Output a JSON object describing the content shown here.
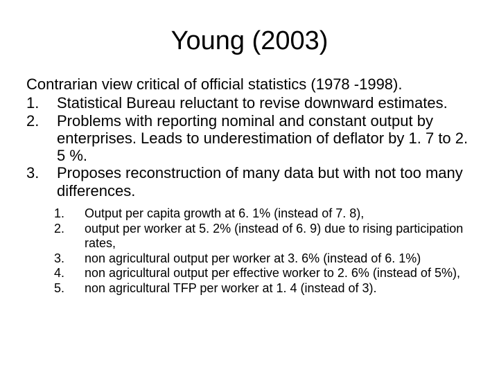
{
  "title": "Young (2003)",
  "intro": "Contrarian view critical of official statistics (1978 -1998).",
  "mainItems": [
    {
      "num": "1.",
      "text": "Statistical Bureau reluctant to revise downward estimates."
    },
    {
      "num": "2.",
      "text": "Problems with reporting nominal and constant output by enterprises. Leads to underestimation of deflator by 1. 7 to 2. 5 %."
    },
    {
      "num": "3.",
      "text": "Proposes reconstruction of many data but with not too many differences."
    }
  ],
  "subItems": [
    {
      "num": "1.",
      "text": "Output per capita growth at 6. 1% (instead of 7. 8),"
    },
    {
      "num": "2.",
      "text": "output per worker at 5. 2% (instead of 6. 9) due to rising participation rates,"
    },
    {
      "num": "3.",
      "text": "non agricultural output per worker at 3. 6% (instead of 6. 1%)"
    },
    {
      "num": "4.",
      "text": "non agricultural output per effective worker to 2. 6% (instead of 5%),"
    },
    {
      "num": "5.",
      "text": "non agricultural TFP per worker at 1. 4 (instead of 3)."
    }
  ]
}
